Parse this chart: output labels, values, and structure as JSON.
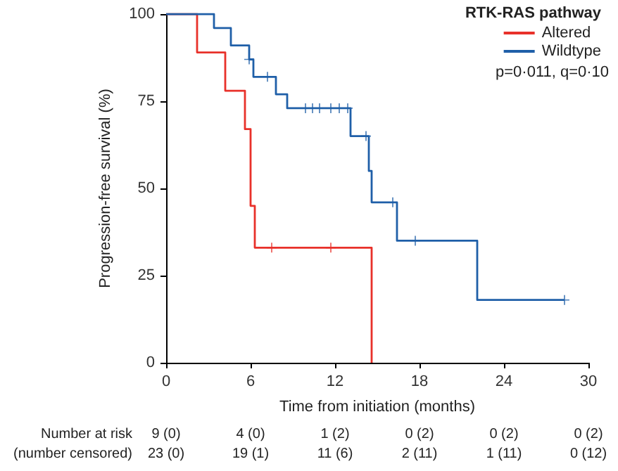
{
  "chart_data": {
    "type": "step",
    "xlabel": "Time from initiation (months)",
    "ylabel": "Progression-free survival (%)",
    "legend_title": "RTK-RAS pathway",
    "xlim": [
      0,
      30
    ],
    "xticks": [
      0,
      6,
      12,
      18,
      24,
      30
    ],
    "ylim": [
      0,
      100
    ],
    "yticks": [
      0,
      25,
      50,
      75,
      100
    ],
    "grid": false,
    "legend": "top right",
    "series": [
      {
        "name": "Altered",
        "color": "#e8312a",
        "marker": "none",
        "x": [
          0,
          2.2,
          4.2,
          5.6,
          6.0,
          6.3,
          14.6
        ],
        "values": [
          100,
          89,
          78,
          67,
          45,
          33,
          0
        ]
      },
      {
        "name": "Wildtype",
        "color": "#1f5fa8",
        "marker": "none",
        "x": [
          0,
          3.4,
          4.6,
          5.9,
          6.2,
          7.8,
          8.6,
          13.1,
          14.4,
          14.6,
          16.4,
          22.1,
          28.3
        ],
        "values": [
          100,
          96,
          91,
          87,
          82,
          77,
          73,
          65,
          55,
          46,
          35,
          18,
          18
        ]
      },
      {
        "type": "scatter",
        "color": "#e8312a",
        "marker": "cross",
        "x": [
          7.5,
          11.7
        ],
        "values": [
          33,
          33
        ]
      },
      {
        "type": "scatter",
        "color": "#1f5fa8",
        "marker": "cross",
        "x": [
          5.9,
          7.2,
          9.9,
          10.4,
          10.9,
          11.7,
          12.3,
          12.9,
          14.2,
          16.1,
          17.7,
          28.3
        ],
        "values": [
          87,
          82,
          73,
          73,
          73,
          73,
          73,
          73,
          65,
          46,
          35,
          18
        ]
      }
    ],
    "annotations": [
      "p=0·011, q=0·10",
      "Number at risk",
      "(number censored)",
      "9 (0)",
      "4 (0)",
      "1 (2)",
      "0 (2)",
      "0 (2)",
      "0 (2)",
      "23 (0)",
      "19 (1)",
      "11 (6)",
      "2 (11)",
      "1 (11)",
      "0 (12)"
    ]
  }
}
